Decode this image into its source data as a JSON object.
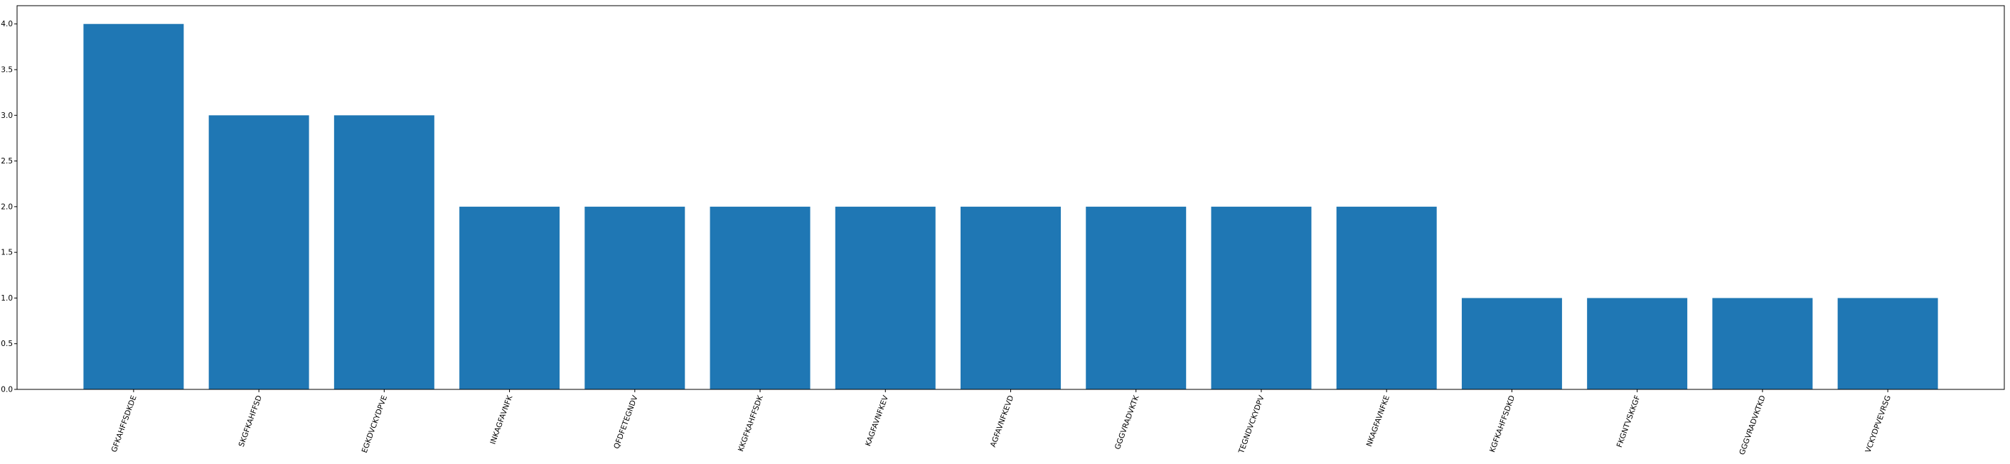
{
  "chart_data": {
    "type": "bar",
    "title": "",
    "xlabel": "",
    "ylabel": "",
    "categories": [
      "GFKAHFFSDKDE",
      "SKGFKAHFFSD",
      "EGKDVCKYDPVE",
      "INKAGFAVNFK",
      "QFDFETEGNDV",
      "KKGFKAHFFSDK",
      "KAGFAVNFKEV",
      "AGFAVNFKEVD",
      "GGGVRADVKTK",
      "TEGNDVCKYDPV",
      "NKAGFAVNFKE",
      "KGFKAHFFSDKD",
      "FKGNTVSKKGF",
      "GGGVRADVKTKD",
      "VCKYDPVEVRSG"
    ],
    "values": [
      4,
      3,
      3,
      2,
      2,
      2,
      2,
      2,
      2,
      2,
      2,
      1,
      1,
      1,
      1
    ],
    "ylim": [
      0,
      4.2
    ],
    "y_ticks": [
      "0.0",
      "0.5",
      "1.0",
      "1.5",
      "2.0",
      "2.5",
      "3.0",
      "3.5",
      "4.0"
    ],
    "bar_color": "#1f77b4",
    "grid": false
  }
}
